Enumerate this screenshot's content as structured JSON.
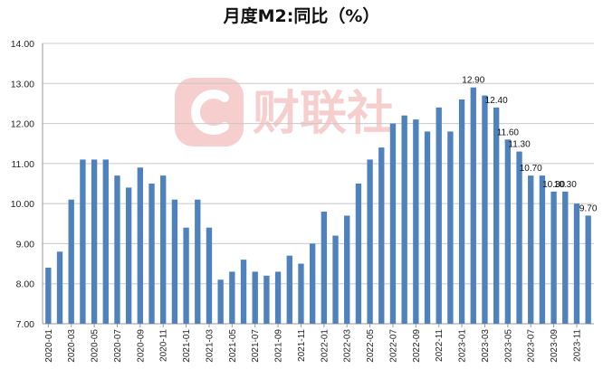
{
  "chart_data": {
    "type": "bar",
    "title": "月度M2:同比（%）",
    "xlabel": "",
    "ylabel": "",
    "ylim": [
      7,
      14
    ],
    "yticks": [
      "7.00",
      "8.00",
      "9.00",
      "10.00",
      "11.00",
      "12.00",
      "13.00",
      "14.00"
    ],
    "grid": true,
    "legend": "none",
    "bar_color": "#4f81bd",
    "categories": [
      "2020-01",
      "2020-02",
      "2020-03",
      "2020-04",
      "2020-05",
      "2020-06",
      "2020-07",
      "2020-08",
      "2020-09",
      "2020-10",
      "2020-11",
      "2020-12",
      "2021-01",
      "2021-02",
      "2021-03",
      "2021-04",
      "2021-05",
      "2021-06",
      "2021-07",
      "2021-08",
      "2021-09",
      "2021-10",
      "2021-11",
      "2021-12",
      "2022-01",
      "2022-02",
      "2022-03",
      "2022-04",
      "2022-05",
      "2022-06",
      "2022-07",
      "2022-08",
      "2022-09",
      "2022-10",
      "2022-11",
      "2022-12",
      "2023-01",
      "2023-02",
      "2023-03",
      "2023-04",
      "2023-05",
      "2023-06",
      "2023-07",
      "2023-08",
      "2023-09",
      "2023-10",
      "2023-11",
      "2023-12"
    ],
    "xtick_labels": [
      "2020-01",
      "2020-03",
      "2020-05",
      "2020-07",
      "2020-09",
      "2020-11",
      "2021-01",
      "2021-03",
      "2021-05",
      "2021-07",
      "2021-09",
      "2021-11",
      "2022-01",
      "2022-03",
      "2022-05",
      "2022-07",
      "2022-09",
      "2022-11",
      "2023-01",
      "2023-03",
      "2023-05",
      "2023-07",
      "2023-09",
      "2023-11"
    ],
    "values": [
      8.4,
      8.8,
      10.1,
      11.1,
      11.1,
      11.1,
      10.7,
      10.4,
      10.9,
      10.5,
      10.7,
      10.1,
      9.4,
      10.1,
      9.4,
      8.1,
      8.3,
      8.6,
      8.3,
      8.2,
      8.3,
      8.7,
      8.5,
      9.0,
      9.8,
      9.2,
      9.7,
      10.5,
      11.1,
      11.4,
      12.0,
      12.2,
      12.1,
      11.8,
      12.4,
      11.8,
      12.6,
      12.9,
      12.7,
      12.4,
      11.6,
      11.3,
      10.7,
      10.7,
      10.3,
      10.3,
      10.0,
      9.7
    ],
    "data_labels": [
      {
        "index": 37,
        "text": "12.90"
      },
      {
        "index": 39,
        "text": "12.40"
      },
      {
        "index": 40,
        "text": "11.60"
      },
      {
        "index": 41,
        "text": "11.30"
      },
      {
        "index": 42,
        "text": "10.70"
      },
      {
        "index": 44,
        "text": "10.30"
      },
      {
        "index": 45,
        "text": "10.30"
      },
      {
        "index": 47,
        "text": "9.70"
      }
    ]
  },
  "watermark": {
    "logo_icon": "cailian-c-logo",
    "text": "财联社",
    "color": "#f6c9c9"
  }
}
